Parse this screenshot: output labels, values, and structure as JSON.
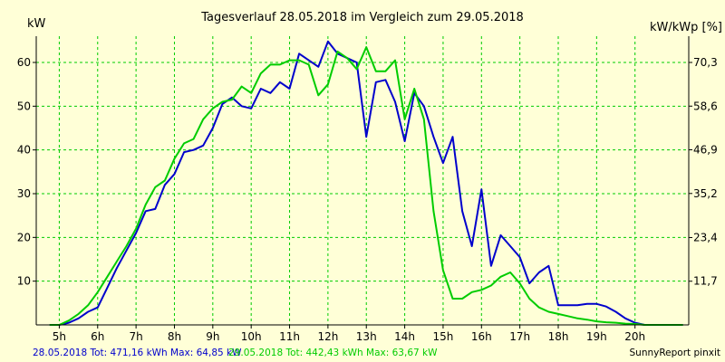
{
  "chart_data": {
    "type": "line",
    "title": "Tagesverlauf 28.05.2018 im Vergleich zum 29.05.2018",
    "ylabel_left": "kW",
    "ylabel_right": "kW/kWp [%]",
    "x_unit": "hour",
    "xlim": [
      4.4,
      21.4
    ],
    "ylim": [
      0,
      66
    ],
    "x_ticks": [
      5,
      6,
      7,
      8,
      9,
      10,
      11,
      12,
      13,
      14,
      15,
      16,
      17,
      18,
      19,
      20
    ],
    "x_tick_labels": [
      "5h",
      "6h",
      "7h",
      "8h",
      "9h",
      "10h",
      "11h",
      "12h",
      "13h",
      "14h",
      "15h",
      "16h",
      "17h",
      "18h",
      "19h",
      "20h"
    ],
    "y_ticks_left": [
      10,
      20,
      30,
      40,
      50,
      60
    ],
    "y_tick_labels_left": [
      "10",
      "20",
      "30",
      "40",
      "50",
      "60"
    ],
    "y_ticks_right_values": [
      11.7,
      23.4,
      35.2,
      46.9,
      58.6,
      70.3
    ],
    "y_tick_labels_right": [
      "11,7",
      "23,4",
      "35,2",
      "46,9",
      "58,6",
      "70,3"
    ],
    "grid": true,
    "series": [
      {
        "color": "#0000cc",
        "x": [
          4.75,
          5.0,
          5.25,
          5.5,
          5.75,
          6.0,
          6.25,
          6.5,
          6.75,
          7.0,
          7.25,
          7.5,
          7.75,
          8.0,
          8.25,
          8.5,
          8.75,
          9.0,
          9.25,
          9.5,
          9.75,
          10.0,
          10.25,
          10.5,
          10.75,
          11.0,
          11.25,
          11.5,
          11.75,
          12.0,
          12.25,
          12.5,
          12.75,
          13.0,
          13.25,
          13.5,
          13.75,
          14.0,
          14.25,
          14.5,
          14.75,
          15.0,
          15.25,
          15.5,
          15.75,
          16.0,
          16.25,
          16.5,
          16.75,
          17.0,
          17.25,
          17.5,
          17.75,
          18.0,
          18.25,
          18.5,
          18.75,
          19.0,
          19.25,
          19.5,
          19.75,
          20.0,
          20.25,
          20.5,
          20.75,
          21.0,
          21.25
        ],
        "y": [
          0,
          0,
          0.5,
          1.5,
          3,
          4,
          8.5,
          13,
          17,
          21,
          26,
          26.5,
          32,
          34.5,
          39.5,
          40,
          41,
          45,
          50.5,
          52,
          50,
          49.5,
          54,
          53,
          55.5,
          54,
          62,
          60.5,
          59,
          64.8,
          62,
          61,
          60,
          43,
          55.5,
          56,
          51,
          42,
          53,
          50,
          43,
          37,
          43,
          26,
          18,
          31,
          13.5,
          20.5,
          18,
          15.5,
          9.5,
          12,
          13.5,
          4.5,
          4.5,
          4.5,
          4.8,
          4.8,
          4.2,
          3,
          1.5,
          0.5,
          0,
          0,
          0,
          0,
          0
        ]
      },
      {
        "color": "#00cc00",
        "x": [
          4.75,
          5.0,
          5.25,
          5.5,
          5.75,
          6.0,
          6.25,
          6.5,
          6.75,
          7.0,
          7.25,
          7.5,
          7.75,
          8.0,
          8.25,
          8.5,
          8.75,
          9.0,
          9.25,
          9.5,
          9.75,
          10.0,
          10.25,
          10.5,
          10.75,
          11.0,
          11.25,
          11.5,
          11.75,
          12.0,
          12.25,
          12.5,
          12.75,
          13.0,
          13.25,
          13.5,
          13.75,
          14.0,
          14.25,
          14.5,
          14.75,
          15.0,
          15.25,
          15.5,
          15.75,
          16.0,
          16.25,
          16.5,
          16.75,
          17.0,
          17.25,
          17.5,
          17.75,
          18.0,
          18.25,
          18.5,
          18.75,
          19.0,
          19.25,
          19.5,
          19.75,
          20.0,
          20.25,
          20.5,
          20.75,
          21.0,
          21.25
        ],
        "y": [
          0,
          0,
          1,
          2.5,
          4.5,
          7.5,
          11,
          14.5,
          18,
          22,
          27.5,
          31.5,
          33,
          38,
          41.5,
          42.5,
          47,
          49.5,
          51,
          51.5,
          54.5,
          53,
          57.5,
          59.5,
          59.5,
          60.5,
          60.5,
          59.5,
          52.5,
          55,
          62.5,
          61,
          58.5,
          63.5,
          58,
          58,
          60.5,
          47,
          54,
          47,
          26,
          12.5,
          6,
          6,
          7.5,
          8,
          9,
          11,
          12,
          9.5,
          6,
          4,
          3,
          2.5,
          2,
          1.5,
          1.2,
          0.8,
          0.6,
          0.5,
          0.3,
          0.2,
          0,
          0,
          0,
          0,
          0
        ]
      }
    ],
    "legend_texts": [
      {
        "text": "28.05.2018 Tot: 471,16 kWh Max: 64,85 kW",
        "color": "#0000cc"
      },
      {
        "text": "29.05.2018 Tot: 442,43 kWh Max: 63,67 kW",
        "color": "#00cc00"
      }
    ],
    "credit": "SunnyReport pinxit",
    "colors": {
      "background": "#ffffd7",
      "grid": "#00cc00",
      "axes": "#000000"
    }
  }
}
